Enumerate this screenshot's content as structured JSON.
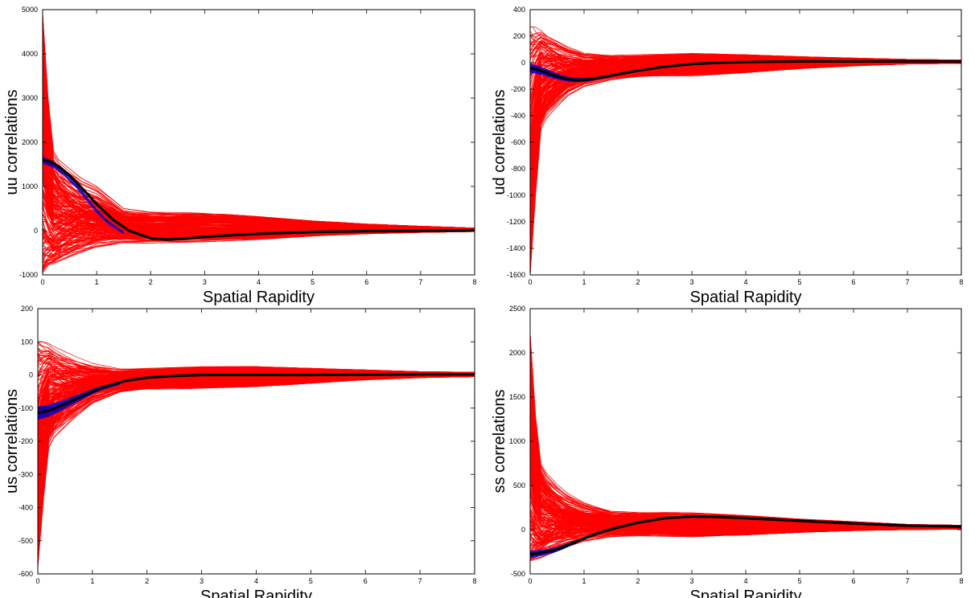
{
  "chart_data": [
    {
      "type": "line",
      "xlabel": "Spatial Rapidity",
      "ylabel": "uu correlations",
      "xlim": [
        0,
        8
      ],
      "ylim": [
        -1000,
        5000
      ],
      "xticks": [
        0,
        1,
        2,
        3,
        4,
        5,
        6,
        7,
        8
      ],
      "yticks": [
        -1000,
        0,
        1000,
        2000,
        3000,
        4000,
        5000
      ],
      "grid": false,
      "colors": {
        "ensemble": "#ff0000",
        "band": "#0000cc",
        "mean": "#000000"
      },
      "ensemble": {
        "count": 220,
        "x": [
          0,
          0.1,
          0.2,
          0.3,
          0.5,
          0.7,
          1.0,
          1.5,
          2.0,
          3.0,
          4.0,
          5.0,
          6.0,
          7.0,
          8.0
        ],
        "upper": [
          4900,
          3000,
          1800,
          1600,
          1400,
          1200,
          1000,
          500,
          420,
          400,
          320,
          220,
          150,
          100,
          60
        ],
        "lower": [
          -950,
          -900,
          -850,
          -800,
          -700,
          -600,
          -450,
          -300,
          -280,
          -250,
          -200,
          -120,
          -70,
          -40,
          -20
        ]
      },
      "band": {
        "x": [
          0,
          0.2,
          0.4,
          0.6,
          0.8,
          1.0,
          1.2,
          1.5
        ],
        "values": [
          1600,
          1500,
          1300,
          1050,
          750,
          450,
          200,
          -50
        ],
        "half_width": [
          80,
          70,
          60,
          55,
          50,
          45,
          40,
          30
        ]
      },
      "series": [
        {
          "x": [
            0,
            0.1,
            0.2,
            0.3,
            0.5,
            0.7,
            1.0,
            1.3,
            1.6,
            2.0,
            2.3,
            2.6,
            3.0,
            3.5,
            4.0,
            5.0,
            6.0,
            7.0,
            8.0
          ],
          "values": [
            1600,
            1580,
            1530,
            1450,
            1250,
            1000,
            600,
            250,
            0,
            -170,
            -200,
            -180,
            -140,
            -100,
            -70,
            -30,
            -10,
            0,
            5
          ]
        }
      ]
    },
    {
      "type": "line",
      "xlabel": "Spatial Rapidity",
      "ylabel": "ud correlations",
      "xlim": [
        0,
        8
      ],
      "ylim": [
        -1600,
        400
      ],
      "xticks": [
        0,
        1,
        2,
        3,
        4,
        5,
        6,
        7,
        8
      ],
      "yticks": [
        -1600,
        -1400,
        -1200,
        -1000,
        -800,
        -600,
        -400,
        -200,
        0,
        200,
        400
      ],
      "grid": false,
      "colors": {
        "ensemble": "#ff0000",
        "band": "#0000cc",
        "mean": "#000000"
      },
      "ensemble": {
        "count": 220,
        "x": [
          0,
          0.1,
          0.2,
          0.3,
          0.5,
          0.7,
          1.0,
          1.5,
          2.0,
          3.0,
          4.0,
          5.0,
          6.0,
          7.0,
          8.0
        ],
        "upper": [
          270,
          270,
          260,
          230,
          180,
          130,
          80,
          60,
          60,
          70,
          60,
          45,
          35,
          25,
          20
        ],
        "lower": [
          -1600,
          -1000,
          -500,
          -420,
          -330,
          -250,
          -180,
          -130,
          -110,
          -100,
          -75,
          -45,
          -25,
          -10,
          -5
        ]
      },
      "band": {
        "x": [
          0,
          0.2,
          0.4,
          0.6,
          0.8,
          1.0,
          1.2,
          1.5
        ],
        "values": [
          -40,
          -60,
          -90,
          -115,
          -130,
          -130,
          -120,
          -100
        ],
        "half_width": [
          35,
          30,
          25,
          20,
          18,
          15,
          12,
          10
        ]
      },
      "series": [
        {
          "x": [
            0,
            0.2,
            0.4,
            0.6,
            0.8,
            1.0,
            1.3,
            1.6,
            2.0,
            2.5,
            3.0,
            3.5,
            4.0,
            5.0,
            6.0,
            7.0,
            8.0
          ],
          "values": [
            -40,
            -60,
            -90,
            -115,
            -130,
            -130,
            -115,
            -90,
            -60,
            -30,
            -10,
            0,
            5,
            10,
            10,
            10,
            8
          ]
        }
      ]
    },
    {
      "type": "line",
      "xlabel": "Spatial Rapidity",
      "ylabel": "us correlations",
      "xlim": [
        0,
        8
      ],
      "ylim": [
        -600,
        200
      ],
      "xticks": [
        0,
        1,
        2,
        3,
        4,
        5,
        6,
        7,
        8
      ],
      "yticks": [
        -600,
        -500,
        -400,
        -300,
        -200,
        -100,
        0,
        100,
        200
      ],
      "grid": false,
      "colors": {
        "ensemble": "#ff0000",
        "band": "#0000cc",
        "mean": "#000000"
      },
      "ensemble": {
        "count": 220,
        "x": [
          0,
          0.1,
          0.2,
          0.3,
          0.5,
          0.7,
          1.0,
          1.5,
          2.0,
          3.0,
          4.0,
          5.0,
          6.0,
          7.0,
          8.0
        ],
        "upper": [
          100,
          100,
          95,
          85,
          70,
          55,
          35,
          20,
          20,
          25,
          25,
          20,
          15,
          10,
          8
        ],
        "lower": [
          -580,
          -380,
          -220,
          -190,
          -160,
          -130,
          -90,
          -55,
          -45,
          -40,
          -35,
          -25,
          -15,
          -8,
          -5
        ]
      },
      "band": {
        "x": [
          0,
          0.2,
          0.4,
          0.6,
          0.8,
          1.0,
          1.2,
          1.5
        ],
        "values": [
          -115,
          -108,
          -95,
          -80,
          -65,
          -50,
          -38,
          -25
        ],
        "half_width": [
          20,
          18,
          15,
          12,
          10,
          8,
          6,
          5
        ]
      },
      "series": [
        {
          "x": [
            0,
            0.2,
            0.4,
            0.6,
            0.8,
            1.0,
            1.3,
            1.6,
            2.0,
            2.5,
            3.0,
            4.0,
            5.0,
            6.0,
            7.0,
            8.0
          ],
          "values": [
            -115,
            -108,
            -95,
            -80,
            -65,
            -50,
            -32,
            -18,
            -8,
            -3,
            0,
            0,
            0,
            1,
            2,
            2
          ]
        }
      ]
    },
    {
      "type": "line",
      "xlabel": "Spatial Rapidity",
      "ylabel": "ss correlations",
      "xlim": [
        0,
        8
      ],
      "ylim": [
        -500,
        2500
      ],
      "xticks": [
        0,
        1,
        2,
        3,
        4,
        5,
        6,
        7,
        8
      ],
      "yticks": [
        -500,
        0,
        500,
        1000,
        1500,
        2000,
        2500
      ],
      "grid": false,
      "colors": {
        "ensemble": "#ff0000",
        "band": "#0000cc",
        "mean": "#000000"
      },
      "ensemble": {
        "count": 220,
        "x": [
          0,
          0.1,
          0.2,
          0.3,
          0.5,
          0.7,
          1.0,
          1.5,
          2.0,
          3.0,
          4.0,
          5.0,
          6.0,
          7.0,
          8.0
        ],
        "upper": [
          2230,
          1300,
          750,
          650,
          520,
          420,
          320,
          220,
          200,
          190,
          160,
          120,
          90,
          60,
          50
        ],
        "lower": [
          -350,
          -340,
          -320,
          -290,
          -240,
          -190,
          -130,
          -80,
          -70,
          -80,
          -60,
          -30,
          -10,
          0,
          5
        ]
      },
      "band": {
        "x": [
          0,
          0.2,
          0.4,
          0.6,
          0.8,
          1.0,
          1.2,
          1.5
        ],
        "values": [
          -280,
          -265,
          -240,
          -200,
          -150,
          -100,
          -50,
          0
        ],
        "half_width": [
          40,
          35,
          30,
          25,
          20,
          15,
          12,
          10
        ]
      },
      "series": [
        {
          "x": [
            0,
            0.2,
            0.4,
            0.6,
            0.8,
            1.0,
            1.3,
            1.6,
            2.0,
            2.5,
            3.0,
            3.5,
            4.0,
            5.0,
            6.0,
            7.0,
            8.0
          ],
          "values": [
            -280,
            -265,
            -240,
            -200,
            -150,
            -100,
            -30,
            20,
            80,
            130,
            150,
            145,
            130,
            100,
            70,
            45,
            35
          ]
        }
      ]
    }
  ]
}
